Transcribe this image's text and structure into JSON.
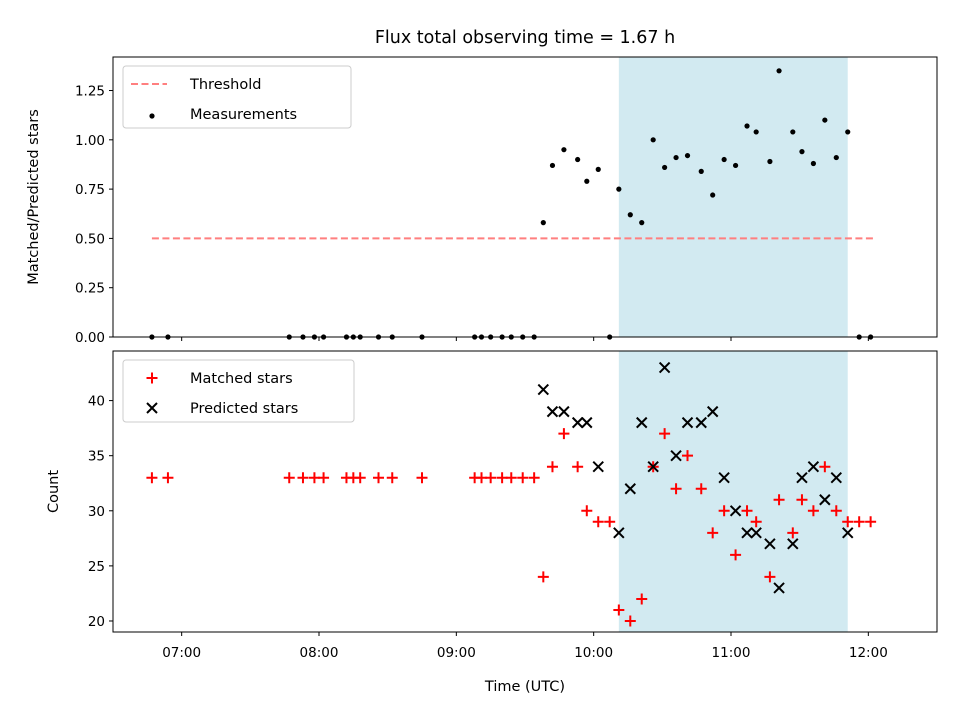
{
  "title": "Flux total observing time = 1.67 h",
  "xlabel": "Time (UTC)",
  "x_ticks": [
    "07:00",
    "08:00",
    "09:00",
    "10:00",
    "11:00",
    "12:00"
  ],
  "highlight_window": {
    "start": "10:11",
    "end": "11:51",
    "color": "#add8e6"
  },
  "chart_data": [
    {
      "type": "scatter",
      "ylabel": "Matched/Predicted stars",
      "ylim": [
        0,
        1.42
      ],
      "y_ticks": [
        "0.00",
        "0.25",
        "0.50",
        "0.75",
        "1.00",
        "1.25"
      ],
      "y_tick_values": [
        0,
        0.25,
        0.5,
        0.75,
        1.0,
        1.25
      ],
      "xlim": [
        "06:30",
        "12:30"
      ],
      "legend": {
        "position": "top-left",
        "entries": [
          "Threshold",
          "Measurements"
        ]
      },
      "series": [
        {
          "name": "Threshold",
          "style": "dashed-line",
          "color": "#ff7f7f",
          "points": [
            [
              "06:47",
              0.5
            ],
            [
              "12:02",
              0.5
            ]
          ]
        },
        {
          "name": "Measurements",
          "style": "dot",
          "color": "#000000",
          "points": [
            [
              "06:47",
              0.0
            ],
            [
              "06:54",
              0.0
            ],
            [
              "07:47",
              0.0
            ],
            [
              "07:53",
              0.0
            ],
            [
              "07:58",
              0.0
            ],
            [
              "08:02",
              0.0
            ],
            [
              "08:12",
              0.0
            ],
            [
              "08:15",
              0.0
            ],
            [
              "08:18",
              0.0
            ],
            [
              "08:26",
              0.0
            ],
            [
              "08:32",
              0.0
            ],
            [
              "08:45",
              0.0
            ],
            [
              "09:08",
              0.0
            ],
            [
              "09:11",
              0.0
            ],
            [
              "09:15",
              0.0
            ],
            [
              "09:20",
              0.0
            ],
            [
              "09:24",
              0.0
            ],
            [
              "09:29",
              0.0
            ],
            [
              "09:34",
              0.0
            ],
            [
              "09:38",
              0.58
            ],
            [
              "09:42",
              0.87
            ],
            [
              "09:47",
              0.95
            ],
            [
              "09:53",
              0.9
            ],
            [
              "09:57",
              0.79
            ],
            [
              "10:02",
              0.85
            ],
            [
              "10:07",
              0.0
            ],
            [
              "10:11",
              0.75
            ],
            [
              "10:16",
              0.62
            ],
            [
              "10:21",
              0.58
            ],
            [
              "10:26",
              1.0
            ],
            [
              "10:31",
              0.86
            ],
            [
              "10:36",
              0.91
            ],
            [
              "10:41",
              0.92
            ],
            [
              "10:47",
              0.84
            ],
            [
              "10:52",
              0.72
            ],
            [
              "10:57",
              0.9
            ],
            [
              "11:02",
              0.87
            ],
            [
              "11:07",
              1.07
            ],
            [
              "11:11",
              1.04
            ],
            [
              "11:17",
              0.89
            ],
            [
              "11:21",
              1.35
            ],
            [
              "11:27",
              1.04
            ],
            [
              "11:31",
              0.94
            ],
            [
              "11:36",
              0.88
            ],
            [
              "11:41",
              1.1
            ],
            [
              "11:46",
              0.91
            ],
            [
              "11:51",
              1.04
            ],
            [
              "11:56",
              0.0
            ],
            [
              "12:01",
              0.0
            ]
          ]
        }
      ]
    },
    {
      "type": "scatter",
      "ylabel": "Count",
      "ylim": [
        19,
        44.5
      ],
      "y_ticks": [
        "20",
        "25",
        "30",
        "35",
        "40"
      ],
      "y_tick_values": [
        20,
        25,
        30,
        35,
        40
      ],
      "xlim": [
        "06:30",
        "12:30"
      ],
      "legend": {
        "position": "top-left",
        "entries": [
          "Matched stars",
          "Predicted stars"
        ]
      },
      "series": [
        {
          "name": "Matched stars",
          "marker": "plus",
          "color": "#ff0000",
          "points": [
            [
              "06:47",
              33
            ],
            [
              "06:54",
              33
            ],
            [
              "07:47",
              33
            ],
            [
              "07:53",
              33
            ],
            [
              "07:58",
              33
            ],
            [
              "08:02",
              33
            ],
            [
              "08:12",
              33
            ],
            [
              "08:15",
              33
            ],
            [
              "08:18",
              33
            ],
            [
              "08:26",
              33
            ],
            [
              "08:32",
              33
            ],
            [
              "08:45",
              33
            ],
            [
              "09:08",
              33
            ],
            [
              "09:11",
              33
            ],
            [
              "09:15",
              33
            ],
            [
              "09:20",
              33
            ],
            [
              "09:24",
              33
            ],
            [
              "09:29",
              33
            ],
            [
              "09:34",
              33
            ],
            [
              "09:38",
              24
            ],
            [
              "09:42",
              34
            ],
            [
              "09:47",
              37
            ],
            [
              "09:53",
              34
            ],
            [
              "09:57",
              30
            ],
            [
              "10:02",
              29
            ],
            [
              "10:07",
              29
            ],
            [
              "10:11",
              21
            ],
            [
              "10:16",
              20
            ],
            [
              "10:21",
              22
            ],
            [
              "10:26",
              34
            ],
            [
              "10:31",
              37
            ],
            [
              "10:36",
              32
            ],
            [
              "10:41",
              35
            ],
            [
              "10:47",
              32
            ],
            [
              "10:52",
              28
            ],
            [
              "10:57",
              30
            ],
            [
              "11:02",
              26
            ],
            [
              "11:07",
              30
            ],
            [
              "11:11",
              29
            ],
            [
              "11:17",
              24
            ],
            [
              "11:21",
              31
            ],
            [
              "11:27",
              28
            ],
            [
              "11:31",
              31
            ],
            [
              "11:36",
              30
            ],
            [
              "11:41",
              34
            ],
            [
              "11:46",
              30
            ],
            [
              "11:51",
              29
            ],
            [
              "11:56",
              29
            ],
            [
              "12:01",
              29
            ]
          ]
        },
        {
          "name": "Predicted stars",
          "marker": "x",
          "color": "#000000",
          "points": [
            [
              "09:38",
              41
            ],
            [
              "09:42",
              39
            ],
            [
              "09:47",
              39
            ],
            [
              "09:53",
              38
            ],
            [
              "09:57",
              38
            ],
            [
              "10:02",
              34
            ],
            [
              "10:11",
              28
            ],
            [
              "10:16",
              32
            ],
            [
              "10:21",
              38
            ],
            [
              "10:26",
              34
            ],
            [
              "10:31",
              43
            ],
            [
              "10:36",
              35
            ],
            [
              "10:41",
              38
            ],
            [
              "10:47",
              38
            ],
            [
              "10:52",
              39
            ],
            [
              "10:57",
              33
            ],
            [
              "11:02",
              30
            ],
            [
              "11:07",
              28
            ],
            [
              "11:11",
              28
            ],
            [
              "11:17",
              27
            ],
            [
              "11:21",
              23
            ],
            [
              "11:27",
              27
            ],
            [
              "11:31",
              33
            ],
            [
              "11:36",
              34
            ],
            [
              "11:41",
              31
            ],
            [
              "11:46",
              33
            ],
            [
              "11:51",
              28
            ]
          ]
        }
      ]
    }
  ]
}
